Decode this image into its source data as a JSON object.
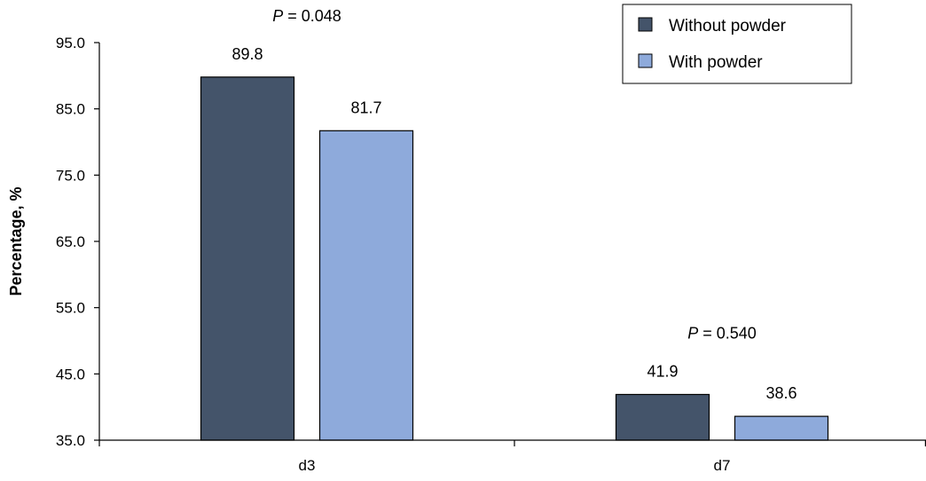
{
  "chart_data": {
    "type": "bar",
    "categories": [
      "d3",
      "d7"
    ],
    "series": [
      {
        "name": "Without powder",
        "values": [
          89.8,
          41.9
        ],
        "color": "#44546a"
      },
      {
        "name": "With powder",
        "values": [
          81.7,
          38.6
        ],
        "color": "#8eaadb"
      }
    ],
    "title": "",
    "xlabel": "",
    "ylabel": "Percentage, %",
    "ylim": [
      35.0,
      95.0
    ],
    "yticks": [
      "35.0",
      "45.0",
      "55.0",
      "65.0",
      "75.0",
      "85.0",
      "95.0"
    ],
    "data_labels": [
      [
        "89.8",
        "41.9"
      ],
      [
        "81.7",
        "38.6"
      ]
    ],
    "annotations": [
      {
        "category": "d3",
        "italic": "P",
        "text": " = 0.048"
      },
      {
        "category": "d7",
        "italic": "P",
        "text": " = 0.540"
      }
    ],
    "grid": false,
    "legend": "top-right"
  }
}
